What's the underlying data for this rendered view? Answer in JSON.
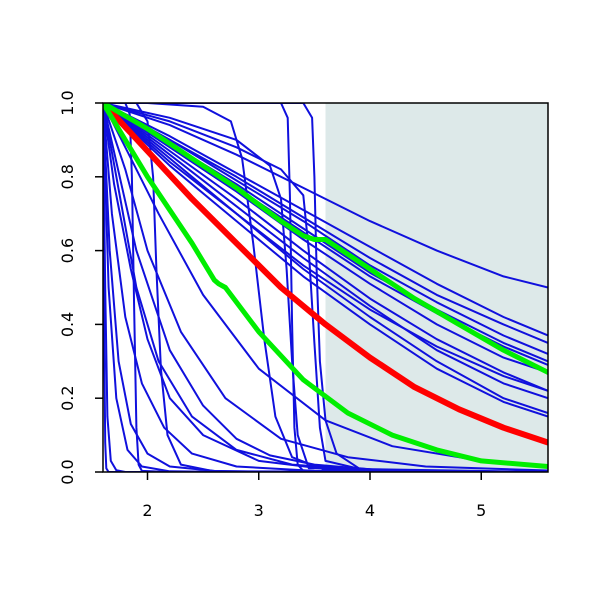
{
  "chart_data": {
    "type": "line",
    "title": "",
    "xlabel": "",
    "ylabel": "",
    "xlim": [
      1.6,
      5.6
    ],
    "ylim": [
      0.0,
      1.0
    ],
    "x_ticks": [
      2,
      3,
      4,
      5
    ],
    "x_tick_labels": [
      "2",
      "3",
      "4",
      "5"
    ],
    "y_ticks": [
      0.0,
      0.2,
      0.4,
      0.6,
      0.8,
      1.0
    ],
    "y_tick_labels": [
      "0.0",
      "0.2",
      "0.4",
      "0.6",
      "0.8",
      "1.0"
    ],
    "grid": false,
    "shaded_region": {
      "x": [
        3.6,
        5.6
      ],
      "color": "#dde9e9"
    },
    "colors": {
      "blue": "#1010dd",
      "red": "#ff0000",
      "green": "#00ee00",
      "axis": "#000000"
    },
    "blue_series": [
      {
        "x": [
          1.6,
          2.2,
          2.8,
          3.4,
          4.0,
          4.6,
          5.2,
          5.6
        ],
        "y": [
          1.0,
          0.94,
          0.86,
          0.77,
          0.68,
          0.6,
          0.53,
          0.5
        ]
      },
      {
        "x": [
          1.6,
          2.2,
          2.8,
          3.4,
          4.0,
          4.6,
          5.2,
          5.6
        ],
        "y": [
          1.0,
          0.9,
          0.8,
          0.69,
          0.58,
          0.48,
          0.4,
          0.35
        ]
      },
      {
        "x": [
          1.6,
          2.2,
          2.8,
          3.4,
          4.0,
          4.6,
          5.2,
          5.6
        ],
        "y": [
          1.0,
          0.91,
          0.81,
          0.71,
          0.61,
          0.51,
          0.42,
          0.37
        ]
      },
      {
        "x": [
          1.6,
          2.2,
          2.8,
          3.4,
          4.0,
          4.6,
          5.2,
          5.6
        ],
        "y": [
          1.0,
          0.9,
          0.79,
          0.68,
          0.56,
          0.46,
          0.37,
          0.32
        ]
      },
      {
        "x": [
          1.6,
          2.2,
          2.8,
          3.4,
          4.0,
          4.6,
          5.2,
          5.6
        ],
        "y": [
          1.0,
          0.89,
          0.78,
          0.66,
          0.54,
          0.44,
          0.35,
          0.3
        ]
      },
      {
        "x": [
          1.6,
          2.2,
          2.8,
          3.4,
          4.0,
          4.6,
          5.2,
          5.6
        ],
        "y": [
          1.0,
          0.89,
          0.77,
          0.65,
          0.53,
          0.43,
          0.34,
          0.29
        ]
      },
      {
        "x": [
          1.6,
          2.2,
          2.8,
          3.4,
          4.0,
          4.6,
          5.2,
          5.6
        ],
        "y": [
          1.0,
          0.88,
          0.76,
          0.63,
          0.51,
          0.4,
          0.31,
          0.27
        ]
      },
      {
        "x": [
          1.6,
          2.2,
          2.8,
          3.4,
          4.0,
          4.6,
          5.2,
          5.6
        ],
        "y": [
          1.0,
          0.87,
          0.74,
          0.6,
          0.47,
          0.36,
          0.27,
          0.22
        ]
      },
      {
        "x": [
          1.6,
          2.2,
          2.8,
          3.4,
          4.0,
          4.6,
          5.2,
          5.6
        ],
        "y": [
          1.0,
          0.86,
          0.72,
          0.58,
          0.45,
          0.33,
          0.24,
          0.2
        ]
      },
      {
        "x": [
          1.6,
          2.2,
          2.8,
          3.4,
          4.0,
          4.6,
          5.2,
          5.6
        ],
        "y": [
          1.0,
          0.84,
          0.7,
          0.55,
          0.42,
          0.3,
          0.2,
          0.16
        ]
      },
      {
        "x": [
          1.6,
          2.2,
          2.8,
          3.4,
          4.0,
          4.6,
          5.2,
          5.6
        ],
        "y": [
          1.0,
          0.83,
          0.68,
          0.53,
          0.4,
          0.28,
          0.19,
          0.15
        ]
      },
      {
        "x": [
          1.6,
          2.2,
          2.8,
          3.4,
          4.0,
          4.6,
          5.2,
          5.6
        ],
        "y": [
          1.0,
          0.85,
          0.7,
          0.56,
          0.44,
          0.34,
          0.26,
          0.22
        ]
      },
      {
        "x": [
          1.6,
          1.8,
          2.1,
          2.5,
          3.0,
          3.6,
          4.2,
          5.0,
          5.6
        ],
        "y": [
          1.0,
          0.88,
          0.7,
          0.48,
          0.28,
          0.14,
          0.07,
          0.03,
          0.015
        ]
      },
      {
        "x": [
          1.6,
          1.8,
          2.0,
          2.3,
          2.7,
          3.2,
          3.8,
          4.5,
          5.6
        ],
        "y": [
          1.0,
          0.82,
          0.6,
          0.38,
          0.2,
          0.09,
          0.04,
          0.015,
          0.004
        ]
      },
      {
        "x": [
          1.6,
          1.75,
          1.9,
          2.1,
          2.4,
          2.8,
          3.3,
          4.0,
          5.6
        ],
        "y": [
          1.0,
          0.75,
          0.5,
          0.3,
          0.15,
          0.06,
          0.02,
          0.005,
          0.0
        ]
      },
      {
        "x": [
          1.6,
          1.7,
          1.85,
          2.0,
          2.2,
          2.5,
          3.0,
          3.6,
          4.5,
          5.6
        ],
        "y": [
          1.0,
          0.78,
          0.55,
          0.36,
          0.2,
          0.1,
          0.03,
          0.008,
          0.002,
          0.0
        ]
      },
      {
        "x": [
          1.6,
          1.68,
          1.8,
          1.95,
          2.15,
          2.4,
          2.8,
          3.5,
          4.5,
          5.6
        ],
        "y": [
          1.0,
          0.7,
          0.42,
          0.24,
          0.12,
          0.05,
          0.015,
          0.003,
          0.0,
          0.0
        ]
      },
      {
        "x": [
          1.6,
          1.66,
          1.74,
          1.85,
          2.0,
          2.2,
          2.6,
          3.2,
          5.6
        ],
        "y": [
          1.0,
          0.6,
          0.3,
          0.13,
          0.05,
          0.015,
          0.003,
          0.0,
          0.0
        ]
      },
      {
        "x": [
          1.6,
          1.65,
          1.72,
          1.82,
          1.95,
          2.2,
          2.8,
          5.6
        ],
        "y": [
          1.0,
          0.5,
          0.2,
          0.06,
          0.015,
          0.002,
          0.0,
          0.0
        ]
      },
      {
        "x": [
          1.6,
          1.62,
          1.64,
          1.67,
          1.72,
          1.8,
          2.0,
          5.6
        ],
        "y": [
          1.0,
          0.5,
          0.15,
          0.03,
          0.005,
          0.0,
          0.0,
          0.0
        ]
      },
      {
        "x": [
          1.6,
          1.61,
          1.62,
          1.63,
          1.65,
          1.7,
          5.6
        ],
        "y": [
          1.0,
          0.4,
          0.08,
          0.01,
          0.0,
          0.0,
          0.0
        ]
      },
      {
        "x": [
          1.6,
          1.8,
          1.84,
          1.86,
          1.88,
          1.9,
          1.92,
          1.95,
          2.2,
          5.6
        ],
        "y": [
          1.0,
          1.0,
          0.97,
          0.8,
          0.45,
          0.12,
          0.02,
          0.003,
          0.0,
          0.0
        ]
      },
      {
        "x": [
          1.6,
          1.9,
          2.0,
          2.05,
          2.08,
          2.12,
          2.18,
          2.3,
          2.6,
          5.6
        ],
        "y": [
          1.0,
          1.0,
          0.95,
          0.8,
          0.55,
          0.28,
          0.1,
          0.02,
          0.002,
          0.0
        ]
      },
      {
        "x": [
          1.6,
          2.0,
          2.5,
          2.75,
          2.85,
          2.95,
          3.05,
          3.15,
          3.3,
          3.6,
          5.6
        ],
        "y": [
          1.0,
          1.0,
          0.99,
          0.95,
          0.85,
          0.62,
          0.36,
          0.15,
          0.04,
          0.005,
          0.0
        ]
      },
      {
        "x": [
          1.6,
          3.2,
          3.26,
          3.28,
          3.3,
          3.32,
          3.35,
          3.4,
          5.6
        ],
        "y": [
          1.0,
          1.0,
          0.96,
          0.75,
          0.4,
          0.12,
          0.02,
          0.003,
          0.0
        ]
      },
      {
        "x": [
          1.6,
          3.4,
          3.48,
          3.5,
          3.52,
          3.55,
          3.6,
          3.7,
          3.9,
          4.2,
          5.6
        ],
        "y": [
          1.0,
          1.0,
          0.96,
          0.8,
          0.55,
          0.3,
          0.14,
          0.05,
          0.01,
          0.002,
          0.0
        ]
      },
      {
        "x": [
          1.6,
          2.2,
          2.8,
          3.2,
          3.4,
          3.45,
          3.5,
          3.55,
          3.6,
          4.0,
          5.6
        ],
        "y": [
          1.0,
          0.95,
          0.88,
          0.82,
          0.75,
          0.6,
          0.35,
          0.12,
          0.03,
          0.002,
          0.0
        ]
      },
      {
        "x": [
          1.6,
          2.2,
          2.8,
          3.1,
          3.2,
          3.25,
          3.3,
          3.35,
          3.45,
          5.6
        ],
        "y": [
          1.0,
          0.96,
          0.9,
          0.83,
          0.74,
          0.55,
          0.3,
          0.1,
          0.01,
          0.0
        ]
      },
      {
        "x": [
          1.6,
          1.9,
          2.2,
          2.5,
          2.8,
          3.1,
          3.5,
          4.0,
          4.6,
          5.6
        ],
        "y": [
          1.0,
          0.6,
          0.33,
          0.18,
          0.09,
          0.045,
          0.02,
          0.007,
          0.002,
          0.0
        ]
      }
    ],
    "red_series": {
      "x": [
        1.6,
        2.0,
        2.4,
        2.8,
        3.2,
        3.6,
        4.0,
        4.4,
        4.8,
        5.2,
        5.6
      ],
      "y": [
        1.0,
        0.87,
        0.74,
        0.62,
        0.5,
        0.4,
        0.31,
        0.23,
        0.17,
        0.12,
        0.08
      ]
    },
    "green_series": [
      {
        "x": [
          1.6,
          2.0,
          2.4,
          2.6,
          2.64,
          2.7,
          3.0,
          3.4,
          3.8,
          4.2,
          4.6,
          5.0,
          5.6
        ],
        "y": [
          1.0,
          0.8,
          0.62,
          0.52,
          0.51,
          0.5,
          0.38,
          0.25,
          0.16,
          0.1,
          0.06,
          0.03,
          0.015
        ]
      },
      {
        "x": [
          1.6,
          2.0,
          2.4,
          2.8,
          3.2,
          3.4,
          3.5,
          3.6,
          4.0,
          4.4,
          4.8,
          5.2,
          5.6
        ],
        "y": [
          1.0,
          0.93,
          0.85,
          0.77,
          0.68,
          0.64,
          0.63,
          0.63,
          0.55,
          0.47,
          0.4,
          0.33,
          0.27
        ]
      }
    ]
  }
}
